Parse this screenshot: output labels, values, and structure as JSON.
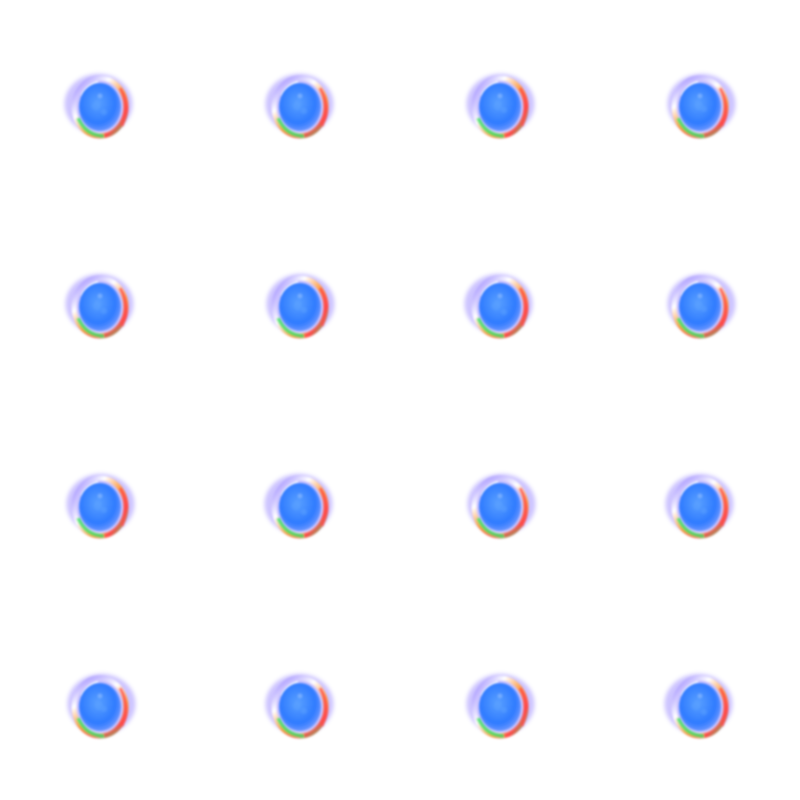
{
  "grid": {
    "rows": 4,
    "columns": 4
  },
  "colors": {
    "background": "#ffffff",
    "core": "#2f7bff",
    "core_light": "#5aa0ff",
    "halo": "#8f7bff",
    "rim_red": "#ff4a4a",
    "rim_orange": "#ff9a3c",
    "rim_green": "#3fe06a",
    "rim_white": "#ffffff"
  },
  "samples": [
    {
      "variant": 0
    },
    {
      "variant": 1
    },
    {
      "variant": 2
    },
    {
      "variant": 3
    },
    {
      "variant": 1
    },
    {
      "variant": 2
    },
    {
      "variant": 0
    },
    {
      "variant": 3
    },
    {
      "variant": 2
    },
    {
      "variant": 0
    },
    {
      "variant": 3
    },
    {
      "variant": 1
    },
    {
      "variant": 3
    },
    {
      "variant": 1
    },
    {
      "variant": 2
    },
    {
      "variant": 0
    }
  ]
}
